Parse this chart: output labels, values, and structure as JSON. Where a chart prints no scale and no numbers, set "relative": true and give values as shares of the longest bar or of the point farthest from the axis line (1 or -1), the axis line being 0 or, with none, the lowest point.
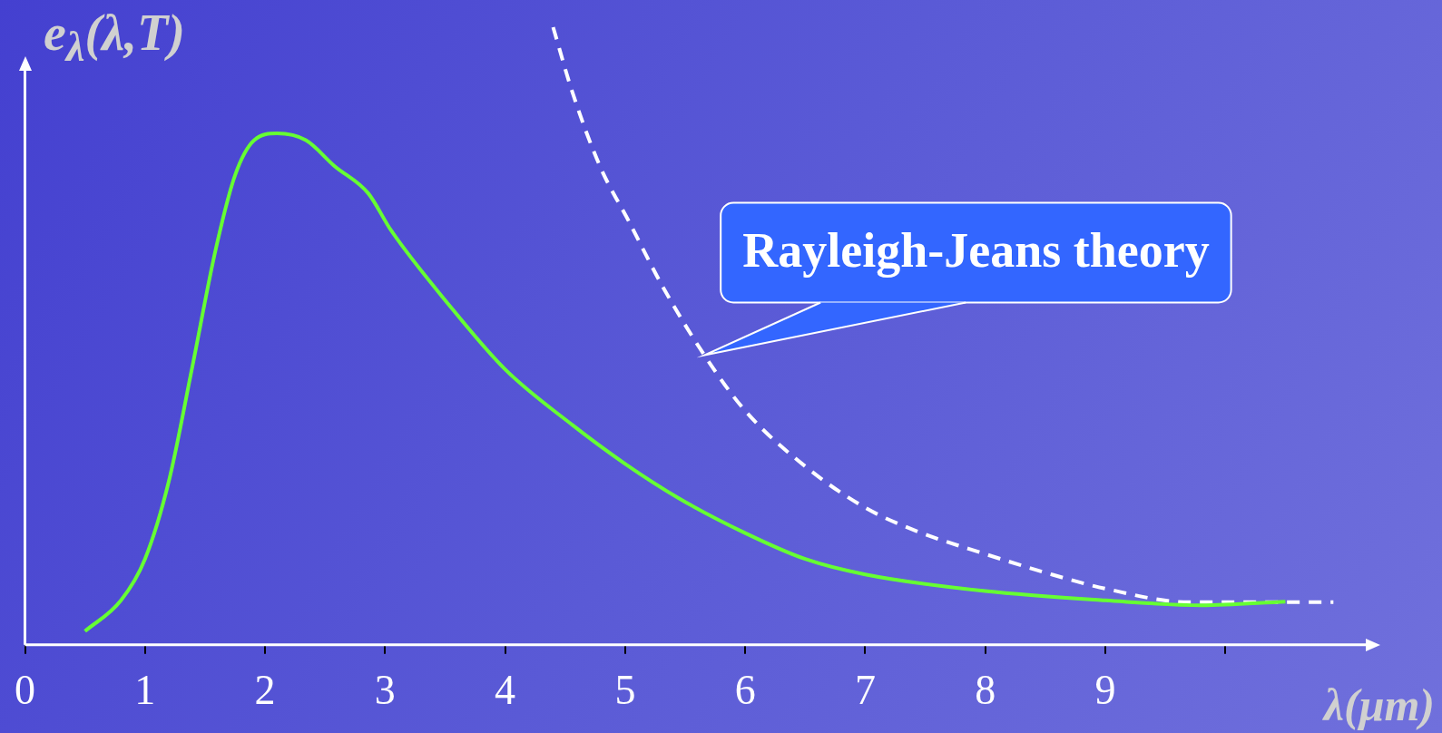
{
  "chart_data": {
    "type": "line",
    "relative": true,
    "xlabel": "λ(μm)",
    "ylabel": "e$_{λ}$(λ,T)",
    "xlim": [
      0,
      11.2
    ],
    "xticks": [
      0,
      1,
      2,
      3,
      4,
      5,
      6,
      7,
      8,
      9,
      {
        "value": 10,
        "label": null
      }
    ],
    "grid": false,
    "legend": false,
    "marker": "none",
    "annotations": [
      {
        "text": "Rayleigh-Jeans theory",
        "x": 5.66,
        "y": 0.469
      }
    ],
    "series": [
      {
        "color": "#66ff33",
        "line_style": "solid",
        "x": [
          0.5,
          0.8,
          1.0,
          1.2,
          1.39,
          1.59,
          1.75,
          1.91,
          2.1,
          2.34,
          2.58,
          2.86,
          3.05,
          3.53,
          4.0,
          4.56,
          5.0,
          5.45,
          6.0,
          6.5,
          7.0,
          8.0,
          9.0,
          9.8,
          10.5
        ],
        "values": [
          0.022,
          0.072,
          0.139,
          0.266,
          0.446,
          0.641,
          0.76,
          0.817,
          0.828,
          0.817,
          0.775,
          0.731,
          0.671,
          0.551,
          0.446,
          0.356,
          0.293,
          0.237,
          0.181,
          0.139,
          0.114,
          0.087,
          0.072,
          0.064,
          0.07
        ]
      },
      {
        "color": "#ffffff",
        "line_style": "dashed",
        "x": [
          4.4,
          4.56,
          4.79,
          5.03,
          5.31,
          5.66,
          6.0,
          6.5,
          7.0,
          7.43,
          8.0,
          8.5,
          9.0,
          9.7,
          10.9
        ],
        "values": [
          1.0,
          0.895,
          0.775,
          0.686,
          0.581,
          0.469,
          0.379,
          0.289,
          0.222,
          0.184,
          0.147,
          0.117,
          0.091,
          0.069,
          0.069
        ]
      }
    ]
  }
}
